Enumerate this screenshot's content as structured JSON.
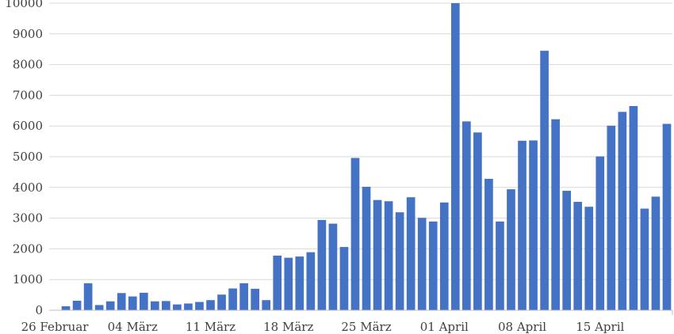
{
  "chart_data": {
    "type": "bar",
    "bar_color": "#4472c4",
    "grid": true,
    "legend": "none",
    "ylim": [
      0,
      10000
    ],
    "yticks": [
      0,
      1000,
      2000,
      3000,
      4000,
      5000,
      6000,
      7000,
      8000,
      9000,
      10000
    ],
    "x_tick_labels": [
      {
        "index": 0,
        "label": "26 Februar"
      },
      {
        "index": 7,
        "label": "04 März"
      },
      {
        "index": 14,
        "label": "11 März"
      },
      {
        "index": 21,
        "label": "18 März"
      },
      {
        "index": 28,
        "label": "25 März"
      },
      {
        "index": 35,
        "label": "01 April"
      },
      {
        "index": 42,
        "label": "08 April"
      },
      {
        "index": 49,
        "label": "15 April"
      }
    ],
    "values": [
      0,
      130,
      310,
      880,
      170,
      290,
      560,
      450,
      570,
      290,
      300,
      190,
      220,
      270,
      330,
      510,
      710,
      880,
      700,
      330,
      1780,
      1710,
      1750,
      1890,
      2940,
      2820,
      2060,
      4960,
      4020,
      3590,
      3550,
      3190,
      3680,
      3010,
      2890,
      3510,
      10000,
      6150,
      5790,
      4280,
      2890,
      3940,
      5520,
      5530,
      8450,
      6220,
      3890,
      3530,
      3370,
      5010,
      6010,
      6460,
      6650,
      3310,
      3700,
      6070
    ]
  }
}
